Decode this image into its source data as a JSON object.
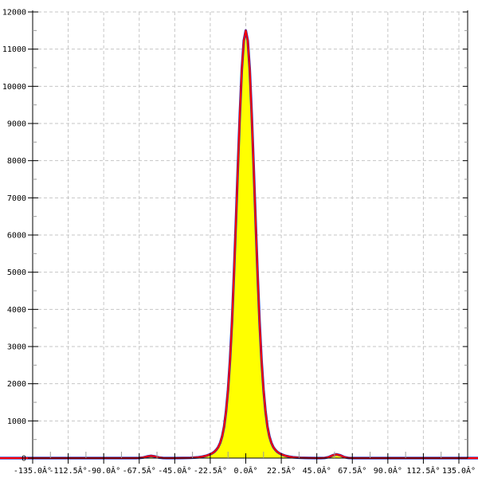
{
  "chart_data": {
    "type": "area",
    "title": "",
    "xlabel": "",
    "ylabel": "",
    "xlim": [
      -135,
      135
    ],
    "ylim": [
      0,
      12000
    ],
    "x_major_step_deg": 22.5,
    "y_major_step": 1000,
    "y_minor_step": 500,
    "grid": "dashed",
    "legend": "none",
    "x_ticks": [
      {
        "value": -135.0,
        "label": "-135.0Â°"
      },
      {
        "value": -112.5,
        "label": "-112.5Â°"
      },
      {
        "value": -90.0,
        "label": "-90.0Â°"
      },
      {
        "value": -67.5,
        "label": "-67.5Â°"
      },
      {
        "value": -45.0,
        "label": "-45.0Â°"
      },
      {
        "value": -22.5,
        "label": "-22.5Â°"
      },
      {
        "value": 0.0,
        "label": "0.0Â°"
      },
      {
        "value": 22.5,
        "label": "22.5Â°"
      },
      {
        "value": 45.0,
        "label": "45.0Â°"
      },
      {
        "value": 67.5,
        "label": "67.5Â°"
      },
      {
        "value": 90.0,
        "label": "90.0Â°"
      },
      {
        "value": 112.5,
        "label": "112.5Â°"
      },
      {
        "value": 135.0,
        "label": "135.0Â°"
      }
    ],
    "y_ticks": [
      {
        "value": 0,
        "label": "0"
      },
      {
        "value": 1000,
        "label": "1000"
      },
      {
        "value": 2000,
        "label": "2000"
      },
      {
        "value": 3000,
        "label": "3000"
      },
      {
        "value": 4000,
        "label": "4000"
      },
      {
        "value": 5000,
        "label": "5000"
      },
      {
        "value": 6000,
        "label": "6000"
      },
      {
        "value": 7000,
        "label": "7000"
      },
      {
        "value": 8000,
        "label": "8000"
      },
      {
        "value": 9000,
        "label": "9000"
      },
      {
        "value": 10000,
        "label": "10000"
      },
      {
        "value": 11000,
        "label": "11000"
      },
      {
        "value": 12000,
        "label": "12000"
      }
    ],
    "series": [
      {
        "name": "angle-distribution-histogram",
        "fill_color": "#ffff00",
        "line_color": "#ff0000",
        "underlay_line_color": "#2a2ab8",
        "peak": {
          "x": 0.0,
          "y": 11500
        },
        "points": [
          [
            -135,
            0
          ],
          [
            -130,
            0
          ],
          [
            -125,
            0
          ],
          [
            -120,
            0
          ],
          [
            -115,
            0
          ],
          [
            -110,
            0
          ],
          [
            -105,
            0
          ],
          [
            -100,
            0
          ],
          [
            -95,
            0
          ],
          [
            -90,
            0
          ],
          [
            -85,
            0
          ],
          [
            -80,
            0
          ],
          [
            -75,
            0
          ],
          [
            -70,
            1
          ],
          [
            -67.5,
            3
          ],
          [
            -65,
            15
          ],
          [
            -62.5,
            42
          ],
          [
            -60,
            60
          ],
          [
            -57.5,
            42
          ],
          [
            -55,
            15
          ],
          [
            -52.5,
            3
          ],
          [
            -50,
            1
          ],
          [
            -45,
            1
          ],
          [
            -40,
            2
          ],
          [
            -35,
            6
          ],
          [
            -32.5,
            12
          ],
          [
            -30,
            22
          ],
          [
            -27.5,
            38
          ],
          [
            -25,
            64
          ],
          [
            -23.75,
            82
          ],
          [
            -22.5,
            104
          ],
          [
            -21.25,
            131
          ],
          [
            -20,
            167
          ],
          [
            -18.75,
            218
          ],
          [
            -17.5,
            292
          ],
          [
            -16.25,
            406
          ],
          [
            -15,
            581
          ],
          [
            -13.75,
            849
          ],
          [
            -12.5,
            1253
          ],
          [
            -11.25,
            1834
          ],
          [
            -10,
            2631
          ],
          [
            -8.75,
            3663
          ],
          [
            -7.5,
            4923
          ],
          [
            -6.25,
            6353
          ],
          [
            -5,
            7851
          ],
          [
            -3.75,
            9272
          ],
          [
            -2.5,
            10447
          ],
          [
            -1.25,
            11227
          ],
          [
            0,
            11500
          ],
          [
            1.25,
            11227
          ],
          [
            2.5,
            10447
          ],
          [
            3.75,
            9272
          ],
          [
            5,
            7851
          ],
          [
            6.25,
            6353
          ],
          [
            7.5,
            4923
          ],
          [
            8.75,
            3663
          ],
          [
            10,
            2631
          ],
          [
            11.25,
            1834
          ],
          [
            12.5,
            1253
          ],
          [
            13.75,
            849
          ],
          [
            15,
            581
          ],
          [
            16.25,
            406
          ],
          [
            17.5,
            292
          ],
          [
            18.75,
            218
          ],
          [
            20,
            167
          ],
          [
            21.25,
            131
          ],
          [
            22.5,
            104
          ],
          [
            23.75,
            82
          ],
          [
            25,
            64
          ],
          [
            27.5,
            38
          ],
          [
            30,
            22
          ],
          [
            32.5,
            12
          ],
          [
            35,
            6
          ],
          [
            40,
            2
          ],
          [
            45,
            1
          ],
          [
            47.5,
            1
          ],
          [
            50,
            5
          ],
          [
            52.5,
            26
          ],
          [
            55,
            72
          ],
          [
            57.5,
            101
          ],
          [
            60,
            72
          ],
          [
            62.5,
            26
          ],
          [
            65,
            5
          ],
          [
            67.5,
            1
          ],
          [
            70,
            0
          ],
          [
            75,
            0
          ],
          [
            80,
            0
          ],
          [
            85,
            0
          ],
          [
            90,
            0
          ],
          [
            95,
            0
          ],
          [
            100,
            0
          ],
          [
            105,
            0
          ],
          [
            110,
            0
          ],
          [
            115,
            0
          ],
          [
            120,
            0
          ],
          [
            125,
            0
          ],
          [
            130,
            0
          ],
          [
            135,
            0
          ]
        ]
      }
    ]
  },
  "colors": {
    "background": "#ffffff",
    "axis": "#000000",
    "grid": "#c6c6c6",
    "minor_tick": "#9a9a9a",
    "tick_label": "#000000"
  }
}
